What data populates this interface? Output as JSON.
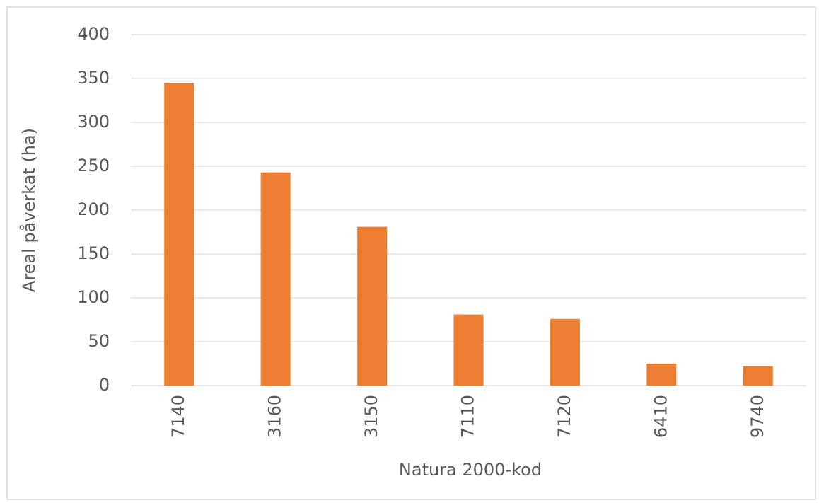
{
  "chart_data": {
    "type": "bar",
    "categories": [
      "7140",
      "3160",
      "3150",
      "7110",
      "7120",
      "6410",
      "9740"
    ],
    "values": [
      345,
      243,
      181,
      81,
      76,
      25,
      22
    ],
    "color": "#ed7d31",
    "xlabel": "Natura 2000-kod",
    "ylabel": "Areal påverkat (ha)",
    "ylim": [
      0,
      400
    ],
    "yticks": [
      0,
      50,
      100,
      150,
      200,
      250,
      300,
      350,
      400
    ],
    "grid": true
  }
}
